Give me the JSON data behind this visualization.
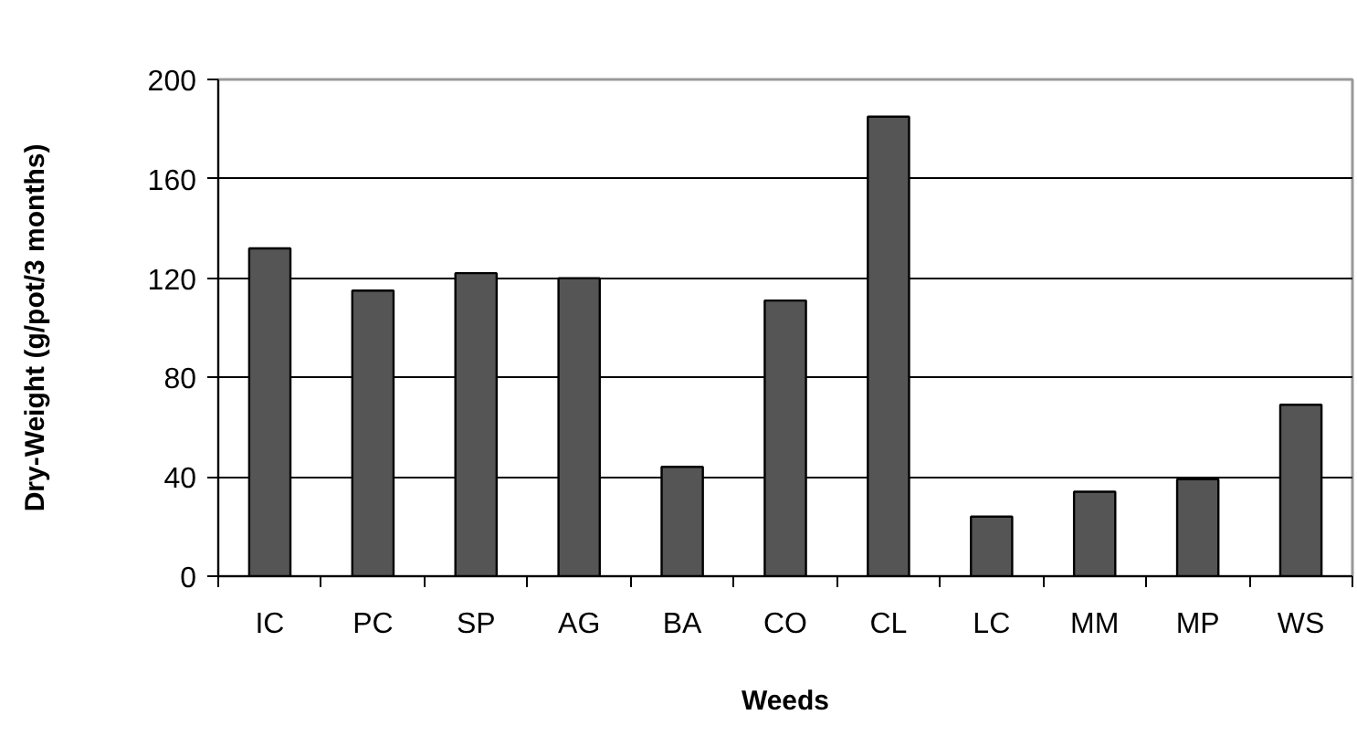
{
  "chart_data": {
    "type": "bar",
    "xlabel": "Weeds",
    "ylabel": "Dry-Weight (g/pot/3 months)",
    "categories": [
      "IC",
      "PC",
      "SP",
      "AG",
      "BA",
      "CO",
      "CL",
      "LC",
      "MM",
      "MP",
      "WS"
    ],
    "values": [
      132,
      115,
      122,
      120,
      44,
      111,
      185,
      24,
      34,
      39,
      69
    ],
    "color": "#555555",
    "ylim": [
      0,
      200
    ],
    "yticks": [
      0,
      40,
      80,
      120,
      160,
      200
    ],
    "grid": "y"
  }
}
